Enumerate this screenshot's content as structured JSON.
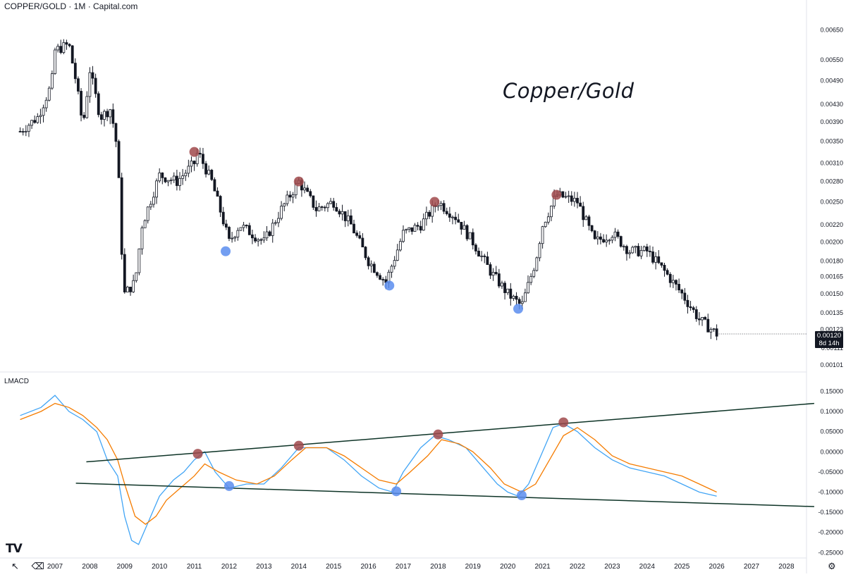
{
  "header": {
    "symbol_title": "COPPER/GOLD · 1M · Capital.com",
    "indicator_title": "LMACD"
  },
  "annotation_text": "Copper/Gold",
  "price_badge": {
    "price": "0.00120",
    "countdown": "8d 14h"
  },
  "bottom_toolbar": {
    "logo": "TV",
    "cursor_icon": "cursor-icon",
    "eraser_icon": "eraser-icon",
    "settings_icon": "gear-icon"
  },
  "colors": {
    "up": "#131722",
    "down": "#131722",
    "macd": "#42a5f5",
    "signal": "#f57c00",
    "trendline": "#0d3326",
    "peak_marker": "#a0494b",
    "trough_marker": "#5b8def"
  },
  "chart_data": [
    {
      "type": "candlestick",
      "title": "COPPER/GOLD · 1M · Capital.com",
      "annotation": "Copper/Gold",
      "x_ticks": [
        "2007",
        "2008",
        "2009",
        "2010",
        "2011",
        "2012",
        "2013",
        "2014",
        "2015",
        "2016",
        "2017",
        "2018",
        "2019",
        "2020",
        "2021",
        "2022",
        "2023",
        "2024",
        "2025",
        "2026",
        "2027",
        "2028"
      ],
      "y_scale": "log",
      "y_ticks": [
        "0.00650",
        "0.00550",
        "0.00490",
        "0.00430",
        "0.00390",
        "0.00350",
        "0.00310",
        "0.00280",
        "0.00250",
        "0.00220",
        "0.00200",
        "0.00180",
        "0.00165",
        "0.00150",
        "0.00135",
        "0.00123",
        "0.00111",
        "0.00101"
      ],
      "ylim": [
        0.00101,
        0.0075
      ],
      "last_price": 0.0012,
      "close_path": [
        {
          "date": "2006.0",
          "value": 0.0037
        },
        {
          "date": "2006.5",
          "value": 0.004
        },
        {
          "date": "2006.9",
          "value": 0.0048
        },
        {
          "date": "2007.0",
          "value": 0.0058
        },
        {
          "date": "2007.4",
          "value": 0.006
        },
        {
          "date": "2007.6",
          "value": 0.0049
        },
        {
          "date": "2007.8",
          "value": 0.0038
        },
        {
          "date": "2008.0",
          "value": 0.0052
        },
        {
          "date": "2008.3",
          "value": 0.004
        },
        {
          "date": "2008.6",
          "value": 0.0042
        },
        {
          "date": "2008.8",
          "value": 0.0033
        },
        {
          "date": "2008.9",
          "value": 0.002
        },
        {
          "date": "2009.0",
          "value": 0.0015
        },
        {
          "date": "2009.3",
          "value": 0.0016
        },
        {
          "date": "2009.5",
          "value": 0.0022
        },
        {
          "date": "2010.0",
          "value": 0.0029
        },
        {
          "date": "2010.5",
          "value": 0.0028
        },
        {
          "date": "2011.0",
          "value": 0.0031
        },
        {
          "date": "2011.1",
          "value": 0.0033
        },
        {
          "date": "2011.5",
          "value": 0.0028
        },
        {
          "date": "2011.8",
          "value": 0.0023
        },
        {
          "date": "2012.0",
          "value": 0.002
        },
        {
          "date": "2012.3",
          "value": 0.0022
        },
        {
          "date": "2013.0",
          "value": 0.002
        },
        {
          "date": "2013.5",
          "value": 0.0024
        },
        {
          "date": "2014.0",
          "value": 0.0028
        },
        {
          "date": "2014.5",
          "value": 0.0024
        },
        {
          "date": "2015.0",
          "value": 0.0025
        },
        {
          "date": "2015.5",
          "value": 0.0022
        },
        {
          "date": "2016.0",
          "value": 0.0018
        },
        {
          "date": "2016.5",
          "value": 0.0016
        },
        {
          "date": "2017.0",
          "value": 0.0021
        },
        {
          "date": "2017.5",
          "value": 0.0022
        },
        {
          "date": "2018.0",
          "value": 0.0025
        },
        {
          "date": "2018.5",
          "value": 0.0023
        },
        {
          "date": "2019.0",
          "value": 0.002
        },
        {
          "date": "2019.5",
          "value": 0.0017
        },
        {
          "date": "2020.0",
          "value": 0.0015
        },
        {
          "date": "2020.4",
          "value": 0.0014
        },
        {
          "date": "2020.8",
          "value": 0.0018
        },
        {
          "date": "2021.0",
          "value": 0.0022
        },
        {
          "date": "2021.4",
          "value": 0.0026
        },
        {
          "date": "2022.0",
          "value": 0.0025
        },
        {
          "date": "2022.5",
          "value": 0.002
        },
        {
          "date": "2023.0",
          "value": 0.0021
        },
        {
          "date": "2023.5",
          "value": 0.0019
        },
        {
          "date": "2024.0",
          "value": 0.0019
        },
        {
          "date": "2024.5",
          "value": 0.0017
        },
        {
          "date": "2025.0",
          "value": 0.0015
        },
        {
          "date": "2025.5",
          "value": 0.0013
        },
        {
          "date": "2026.0",
          "value": 0.0012
        }
      ],
      "peak_markers": [
        {
          "date": "2011.0",
          "value": 0.0033
        },
        {
          "date": "2014.0",
          "value": 0.0028
        },
        {
          "date": "2017.9",
          "value": 0.0025
        },
        {
          "date": "2021.4",
          "value": 0.0026
        }
      ],
      "trough_markers": [
        {
          "date": "2011.9",
          "value": 0.0019
        },
        {
          "date": "2016.6",
          "value": 0.00157
        },
        {
          "date": "2020.3",
          "value": 0.00138
        }
      ]
    },
    {
      "type": "line",
      "title": "LMACD",
      "y_ticks": [
        "0.15000",
        "0.10000",
        "0.05000",
        "0.00000",
        "-0.05000",
        "-0.10000",
        "-0.15000",
        "-0.20000",
        "-0.25000"
      ],
      "ylim": [
        -0.26,
        0.17
      ],
      "series": [
        {
          "key": "macd",
          "color": "#42a5f5",
          "points": [
            [
              2006.0,
              0.09
            ],
            [
              2006.6,
              0.11
            ],
            [
              2007.0,
              0.14
            ],
            [
              2007.4,
              0.1
            ],
            [
              2007.8,
              0.08
            ],
            [
              2008.2,
              0.05
            ],
            [
              2008.5,
              -0.02
            ],
            [
              2008.8,
              -0.06
            ],
            [
              2009.0,
              -0.16
            ],
            [
              2009.2,
              -0.22
            ],
            [
              2009.4,
              -0.23
            ],
            [
              2009.7,
              -0.17
            ],
            [
              2010.0,
              -0.11
            ],
            [
              2010.4,
              -0.07
            ],
            [
              2010.7,
              -0.05
            ],
            [
              2011.0,
              -0.02
            ],
            [
              2011.3,
              0.0
            ],
            [
              2011.6,
              -0.05
            ],
            [
              2012.0,
              -0.09
            ],
            [
              2012.5,
              -0.08
            ],
            [
              2013.0,
              -0.08
            ],
            [
              2013.5,
              -0.04
            ],
            [
              2014.0,
              0.01
            ],
            [
              2014.3,
              0.01
            ],
            [
              2014.8,
              0.01
            ],
            [
              2015.3,
              -0.02
            ],
            [
              2015.8,
              -0.06
            ],
            [
              2016.3,
              -0.09
            ],
            [
              2016.7,
              -0.1
            ],
            [
              2017.0,
              -0.05
            ],
            [
              2017.5,
              0.01
            ],
            [
              2017.9,
              0.04
            ],
            [
              2018.3,
              0.03
            ],
            [
              2018.8,
              0.01
            ],
            [
              2019.2,
              -0.03
            ],
            [
              2019.7,
              -0.08
            ],
            [
              2020.0,
              -0.1
            ],
            [
              2020.3,
              -0.11
            ],
            [
              2020.6,
              -0.08
            ],
            [
              2021.0,
              0.0
            ],
            [
              2021.3,
              0.06
            ],
            [
              2021.6,
              0.07
            ],
            [
              2022.0,
              0.05
            ],
            [
              2022.5,
              0.01
            ],
            [
              2023.0,
              -0.02
            ],
            [
              2023.5,
              -0.04
            ],
            [
              2024.0,
              -0.05
            ],
            [
              2024.5,
              -0.06
            ],
            [
              2025.0,
              -0.08
            ],
            [
              2025.5,
              -0.1
            ],
            [
              2026.0,
              -0.11
            ]
          ]
        },
        {
          "key": "signal",
          "color": "#f57c00",
          "points": [
            [
              2006.0,
              0.08
            ],
            [
              2006.6,
              0.1
            ],
            [
              2007.0,
              0.12
            ],
            [
              2007.4,
              0.11
            ],
            [
              2007.8,
              0.09
            ],
            [
              2008.2,
              0.06
            ],
            [
              2008.5,
              0.03
            ],
            [
              2008.8,
              -0.02
            ],
            [
              2009.0,
              -0.08
            ],
            [
              2009.3,
              -0.16
            ],
            [
              2009.6,
              -0.18
            ],
            [
              2009.9,
              -0.16
            ],
            [
              2010.2,
              -0.12
            ],
            [
              2010.6,
              -0.09
            ],
            [
              2011.0,
              -0.06
            ],
            [
              2011.3,
              -0.03
            ],
            [
              2011.7,
              -0.05
            ],
            [
              2012.2,
              -0.07
            ],
            [
              2012.8,
              -0.08
            ],
            [
              2013.3,
              -0.06
            ],
            [
              2013.8,
              -0.02
            ],
            [
              2014.2,
              0.01
            ],
            [
              2014.8,
              0.01
            ],
            [
              2015.3,
              -0.01
            ],
            [
              2015.8,
              -0.04
            ],
            [
              2016.3,
              -0.07
            ],
            [
              2016.8,
              -0.08
            ],
            [
              2017.2,
              -0.05
            ],
            [
              2017.7,
              -0.01
            ],
            [
              2018.1,
              0.03
            ],
            [
              2018.6,
              0.02
            ],
            [
              2019.0,
              0.0
            ],
            [
              2019.5,
              -0.04
            ],
            [
              2019.9,
              -0.08
            ],
            [
              2020.4,
              -0.1
            ],
            [
              2020.8,
              -0.08
            ],
            [
              2021.2,
              -0.02
            ],
            [
              2021.6,
              0.04
            ],
            [
              2022.0,
              0.06
            ],
            [
              2022.5,
              0.03
            ],
            [
              2023.0,
              -0.01
            ],
            [
              2023.5,
              -0.03
            ],
            [
              2024.0,
              -0.04
            ],
            [
              2024.5,
              -0.05
            ],
            [
              2025.0,
              -0.06
            ],
            [
              2025.5,
              -0.08
            ],
            [
              2026.0,
              -0.1
            ]
          ]
        }
      ],
      "trendlines": [
        {
          "from": [
            2007.9,
            -0.025
          ],
          "to": [
            2028.8,
            0.12
          ]
        },
        {
          "from": [
            2007.6,
            -0.078
          ],
          "to": [
            2028.8,
            -0.136
          ]
        }
      ],
      "peak_markers": [
        [
          2011.1,
          -0.005
        ],
        [
          2014.0,
          0.015
        ],
        [
          2018.0,
          0.043
        ],
        [
          2021.6,
          0.073
        ]
      ],
      "trough_markers": [
        [
          2012.0,
          -0.085
        ],
        [
          2016.8,
          -0.098
        ],
        [
          2020.4,
          -0.108
        ]
      ]
    }
  ]
}
